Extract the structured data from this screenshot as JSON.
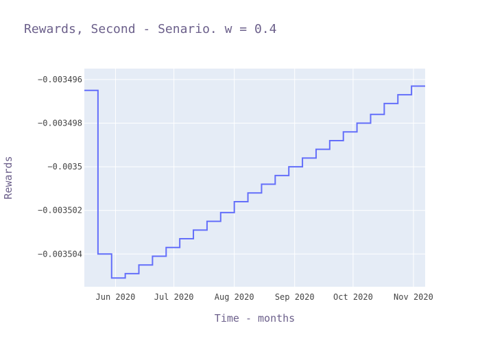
{
  "chart_data": {
    "type": "line",
    "line_shape": "step",
    "title": "Rewards, Second - Senario. w = 0.4",
    "xlabel": "Time - months",
    "ylabel": "Rewards",
    "x_tick_labels": [
      "Jun 2020",
      "Jul 2020",
      "Aug 2020",
      "Sep 2020",
      "Oct 2020",
      "Nov 2020"
    ],
    "x_tick_dates": [
      "2020-06-01",
      "2020-07-01",
      "2020-08-01",
      "2020-09-01",
      "2020-10-01",
      "2020-11-01"
    ],
    "y_tick_labels": [
      "−0.003496",
      "−0.003498",
      "−0.0035",
      "−0.003502",
      "−0.003504"
    ],
    "y_tick_values": [
      -0.003496,
      -0.003498,
      -0.0035,
      -0.003502,
      -0.003504
    ],
    "xlim": [
      "2020-05-16",
      "2020-11-07"
    ],
    "ylim": [
      -0.0035055,
      -0.0034955
    ],
    "grid": true,
    "colors": {
      "line": "#636efa",
      "plot_bg": "#e5ecf6",
      "grid": "#ffffff"
    },
    "series": [
      {
        "x": [
          "2020-05-16",
          "2020-05-23",
          "2020-05-30",
          "2020-06-06",
          "2020-06-13",
          "2020-06-20",
          "2020-06-27",
          "2020-07-04",
          "2020-07-11",
          "2020-07-18",
          "2020-07-25",
          "2020-08-01",
          "2020-08-08",
          "2020-08-15",
          "2020-08-22",
          "2020-08-29",
          "2020-09-05",
          "2020-09-12",
          "2020-09-19",
          "2020-09-26",
          "2020-10-03",
          "2020-10-10",
          "2020-10-17",
          "2020-10-24",
          "2020-10-31",
          "2020-11-07"
        ],
        "y": [
          -0.0034965,
          -0.003504,
          -0.0035051,
          -0.0035049,
          -0.0035045,
          -0.0035041,
          -0.0035037,
          -0.0035033,
          -0.0035029,
          -0.0035025,
          -0.0035021,
          -0.0035016,
          -0.0035012,
          -0.0035008,
          -0.0035004,
          -0.0035,
          -0.0034996,
          -0.0034992,
          -0.0034988,
          -0.0034984,
          -0.003498,
          -0.0034976,
          -0.0034971,
          -0.0034967,
          -0.0034963,
          -0.0034963
        ]
      }
    ]
  }
}
